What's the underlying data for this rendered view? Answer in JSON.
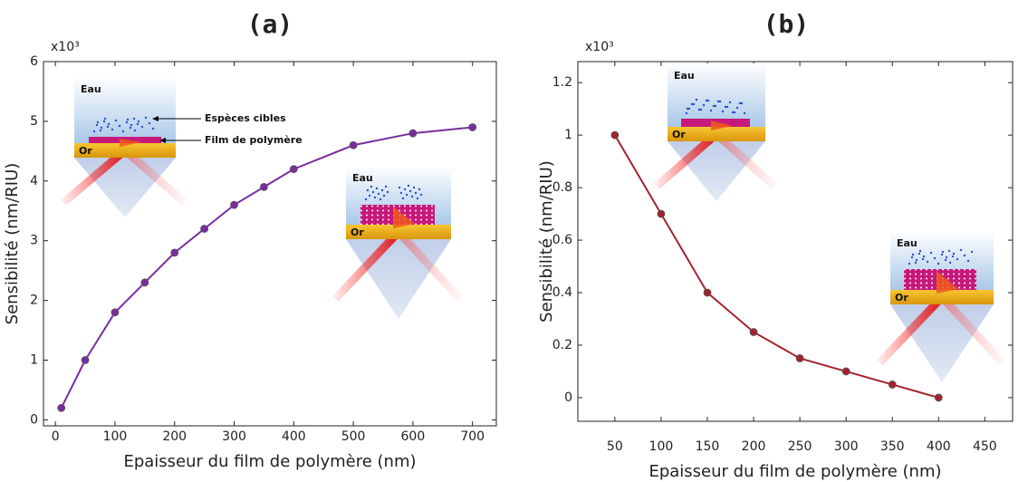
{
  "chart_data": [
    {
      "type": "line",
      "title": "(a)",
      "x_label": "Epaisseur du film de polymère (nm)",
      "y_label": "Sensibilité (nm/RIU)",
      "y_multiplier": "x10³",
      "x": [
        10,
        50,
        100,
        150,
        200,
        250,
        300,
        350,
        400,
        500,
        600,
        700
      ],
      "series": [
        {
          "name": "Sensibilité",
          "color": "#7b2d9e",
          "values": [
            0.2,
            1.0,
            1.8,
            2.3,
            2.8,
            3.2,
            3.6,
            3.9,
            4.2,
            4.6,
            4.8,
            4.9
          ]
        }
      ],
      "xlim": [
        -20,
        740
      ],
      "ylim": [
        -0.1,
        6
      ],
      "xticks": [
        0,
        100,
        200,
        300,
        400,
        500,
        600,
        700
      ],
      "yticks": [
        0,
        1,
        2,
        3,
        4,
        5,
        6
      ],
      "insets": [
        {
          "labels": [
            "Eau",
            "Or",
            "Espèces cibles",
            "Film de polymère"
          ]
        },
        {
          "labels": [
            "Eau",
            "Or"
          ]
        }
      ]
    },
    {
      "type": "line",
      "title": "(b)",
      "x_label": "Epaisseur du film de polymère (nm)",
      "y_label": "Sensibilité (nm/RIU)",
      "y_multiplier": "x10³",
      "x": [
        50,
        100,
        150,
        200,
        250,
        300,
        350,
        400
      ],
      "series": [
        {
          "name": "Sensibilité",
          "color": "#a3222e",
          "values": [
            1.0,
            0.7,
            0.4,
            0.25,
            0.15,
            0.1,
            0.05,
            0.0
          ]
        }
      ],
      "xlim": [
        10,
        480
      ],
      "ylim": [
        -0.09,
        1.28
      ],
      "xticks": [
        50,
        100,
        150,
        200,
        250,
        300,
        350,
        400,
        450
      ],
      "yticks": [
        0,
        0.2,
        0.4,
        0.6,
        0.8,
        1,
        1.2
      ],
      "insets": [
        {
          "labels": [
            "Eau",
            "Or"
          ]
        },
        {
          "labels": [
            "Eau",
            "Or"
          ]
        }
      ]
    }
  ]
}
